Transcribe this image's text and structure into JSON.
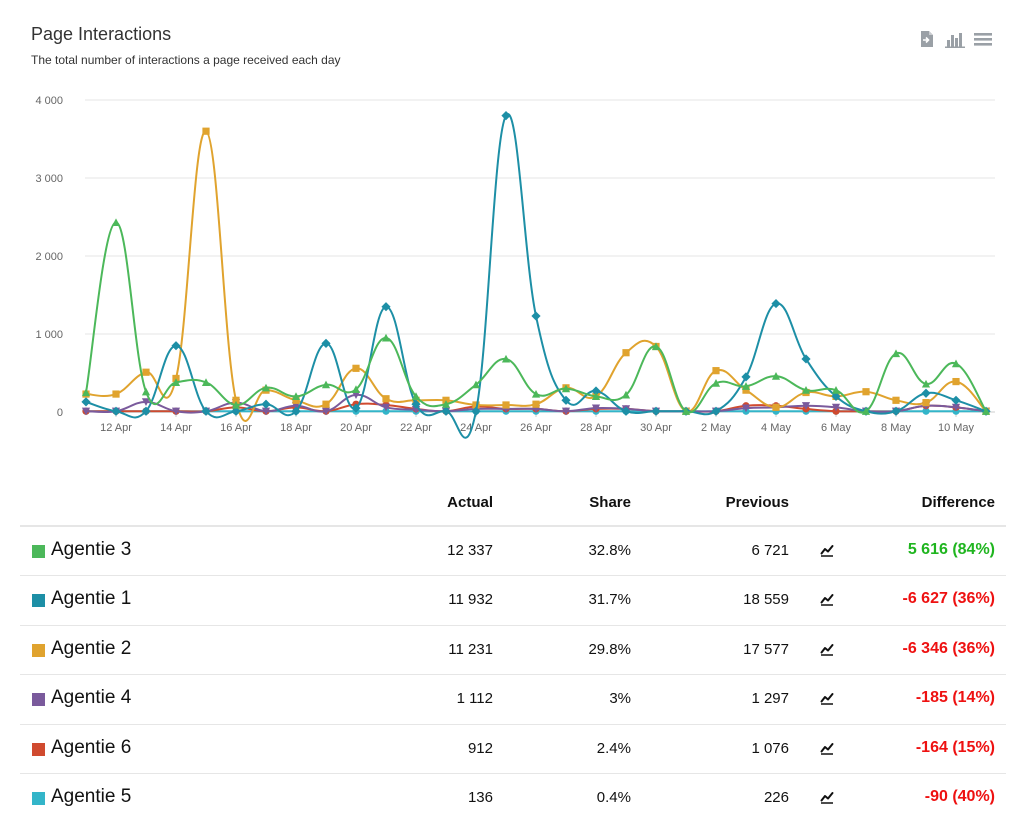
{
  "chart": {
    "title": "Page Interactions",
    "subtitle": "The total number of interactions a page received each day"
  },
  "toolbar": {
    "icons": [
      "export-icon",
      "chart-type-icon",
      "menu-icon"
    ]
  },
  "chart_data": {
    "type": "line",
    "title": "Page Interactions",
    "subtitle": "The total number of interactions a page received each day",
    "xlabel": "",
    "ylabel": "",
    "ylim": [
      0,
      4000
    ],
    "yticks": [
      0,
      1000,
      2000,
      3000,
      4000
    ],
    "ytick_labels": [
      "0",
      "1 000",
      "2 000",
      "3 000",
      "4 000"
    ],
    "xtick_labels": [
      "12 Apr",
      "14 Apr",
      "16 Apr",
      "18 Apr",
      "20 Apr",
      "22 Apr",
      "24 Apr",
      "26 Apr",
      "28 Apr",
      "30 Apr",
      "2 May",
      "4 May",
      "6 May",
      "8 May",
      "10 May"
    ],
    "x": [
      "11 Apr",
      "12 Apr",
      "13 Apr",
      "14 Apr",
      "15 Apr",
      "16 Apr",
      "17 Apr",
      "18 Apr",
      "19 Apr",
      "20 Apr",
      "21 Apr",
      "22 Apr",
      "23 Apr",
      "24 Apr",
      "25 Apr",
      "26 Apr",
      "27 Apr",
      "28 Apr",
      "29 Apr",
      "30 Apr",
      "1 May",
      "2 May",
      "3 May",
      "4 May",
      "5 May",
      "6 May",
      "7 May",
      "8 May",
      "9 May",
      "10 May",
      "11 May"
    ],
    "grid": true,
    "legend": "none",
    "series": [
      {
        "name": "Agentie 3",
        "color": "#4cb85a",
        "marker": "triangle",
        "values": [
          250,
          2430,
          260,
          380,
          380,
          90,
          310,
          200,
          350,
          290,
          950,
          200,
          100,
          350,
          680,
          230,
          300,
          200,
          220,
          840,
          10,
          370,
          330,
          460,
          280,
          280,
          10,
          750,
          360,
          620,
          10
        ]
      },
      {
        "name": "Agentie 1",
        "color": "#1d8fa6",
        "marker": "diamond",
        "values": [
          130,
          10,
          10,
          850,
          10,
          10,
          100,
          10,
          880,
          50,
          1350,
          100,
          10,
          10,
          3800,
          1230,
          150,
          270,
          10,
          10,
          10,
          10,
          450,
          1390,
          680,
          200,
          10,
          10,
          240,
          150,
          10
        ]
      },
      {
        "name": "Agentie 2",
        "color": "#e0a32e",
        "marker": "square",
        "values": [
          230,
          230,
          510,
          430,
          3600,
          150,
          280,
          150,
          100,
          560,
          170,
          150,
          150,
          90,
          90,
          100,
          310,
          200,
          760,
          840,
          10,
          530,
          280,
          60,
          250,
          200,
          260,
          150,
          120,
          390,
          10
        ]
      },
      {
        "name": "Agentie 4",
        "color": "#7a5a9c",
        "marker": "triangle-down",
        "values": [
          10,
          10,
          130,
          10,
          10,
          120,
          10,
          80,
          10,
          220,
          60,
          30,
          10,
          40,
          40,
          40,
          10,
          50,
          40,
          10,
          10,
          10,
          50,
          60,
          80,
          60,
          10,
          10,
          80,
          60,
          10
        ]
      },
      {
        "name": "Agentie 6",
        "color": "#d04a2f",
        "marker": "circle",
        "values": [
          10,
          10,
          10,
          10,
          10,
          60,
          10,
          60,
          10,
          100,
          90,
          40,
          10,
          70,
          40,
          40,
          10,
          40,
          40,
          10,
          10,
          10,
          80,
          80,
          40,
          10,
          10,
          10,
          80,
          60,
          10
        ]
      },
      {
        "name": "Agentie 5",
        "color": "#33b5c9",
        "marker": "circle",
        "values": [
          10,
          10,
          10,
          10,
          10,
          10,
          10,
          10,
          10,
          10,
          10,
          10,
          10,
          10,
          10,
          10,
          10,
          10,
          10,
          10,
          10,
          10,
          10,
          10,
          10,
          10,
          10,
          10,
          10,
          10,
          10
        ]
      }
    ]
  },
  "table": {
    "headers": {
      "actual": "Actual",
      "share": "Share",
      "previous": "Previous",
      "difference": "Difference"
    },
    "rows": [
      {
        "name": "Agentie 3",
        "color": "#4cb85a",
        "actual": "12 337",
        "share": "32.8%",
        "previous": "6 721",
        "difference": "5 616 (84%)",
        "diff_color": "#1fb51f"
      },
      {
        "name": "Agentie 1",
        "color": "#1d8fa6",
        "actual": "11 932",
        "share": "31.7%",
        "previous": "18 559",
        "difference": "-6 627 (36%)",
        "diff_color": "#ee1111"
      },
      {
        "name": "Agentie 2",
        "color": "#e0a32e",
        "actual": "11 231",
        "share": "29.8%",
        "previous": "17 577",
        "difference": "-6 346 (36%)",
        "diff_color": "#ee1111"
      },
      {
        "name": "Agentie 4",
        "color": "#7a5a9c",
        "actual": "1 112",
        "share": "3%",
        "previous": "1 297",
        "difference": "-185 (14%)",
        "diff_color": "#ee1111"
      },
      {
        "name": "Agentie 6",
        "color": "#d04a2f",
        "actual": "912",
        "share": "2.4%",
        "previous": "1 076",
        "difference": "-164 (15%)",
        "diff_color": "#ee1111"
      },
      {
        "name": "Agentie 5",
        "color": "#33b5c9",
        "actual": "136",
        "share": "0.4%",
        "previous": "226",
        "difference": "-90 (40%)",
        "diff_color": "#ee1111"
      }
    ]
  }
}
